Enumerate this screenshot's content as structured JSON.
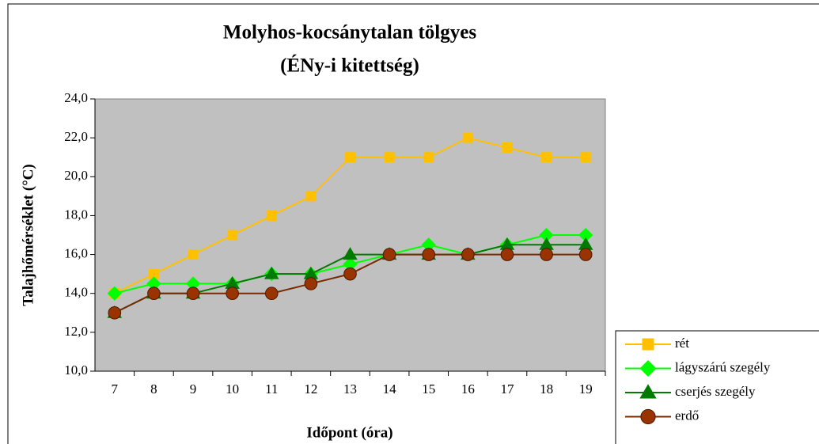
{
  "chart_data": {
    "type": "line",
    "title": [
      "Molyhos-kocsánytalan tölgyes",
      "(ÉNy-i kitettség)"
    ],
    "x_label": "Időpont (óra)",
    "y_label": "Talajhőmérséklet (°C)",
    "categories": [
      "7",
      "8",
      "9",
      "10",
      "11",
      "12",
      "13",
      "14",
      "15",
      "16",
      "17",
      "18",
      "19"
    ],
    "series": [
      {
        "name": "rét",
        "color": "#FFC000",
        "marker": "square",
        "values": [
          14,
          15,
          16,
          17,
          18,
          19,
          21,
          21,
          21,
          22,
          21.5,
          21,
          21
        ]
      },
      {
        "name": "lágyszárú szegély",
        "color": "#00FF00",
        "marker": "diamond",
        "values": [
          14,
          14.5,
          14.5,
          14.5,
          15,
          15,
          15.5,
          16,
          16.5,
          16,
          16.5,
          17,
          17
        ]
      },
      {
        "name": "cserjés szegély",
        "color": "#007A00",
        "marker": "triangle",
        "values": [
          13,
          14,
          14,
          14.5,
          15,
          15,
          16,
          16,
          16,
          16,
          16.5,
          16.5,
          16.5
        ]
      },
      {
        "name": "erdő",
        "color": "#993300",
        "marker": "circle",
        "values": [
          13,
          14,
          14,
          14,
          14,
          14.5,
          15,
          16,
          16,
          16,
          16,
          16,
          16
        ]
      }
    ],
    "ylim": [
      10,
      24
    ],
    "yticks": [
      {
        "value": 10,
        "label": "10,0"
      },
      {
        "value": 12,
        "label": "12,0"
      },
      {
        "value": 14,
        "label": "14,0"
      },
      {
        "value": 16,
        "label": "16,0"
      },
      {
        "value": 18,
        "label": "18,0"
      },
      {
        "value": 20,
        "label": "20,0"
      },
      {
        "value": 22,
        "label": "22,0"
      },
      {
        "value": 24,
        "label": "24,0"
      }
    ],
    "plot_background": "#C0C0C0",
    "legend": "bottom-right"
  }
}
